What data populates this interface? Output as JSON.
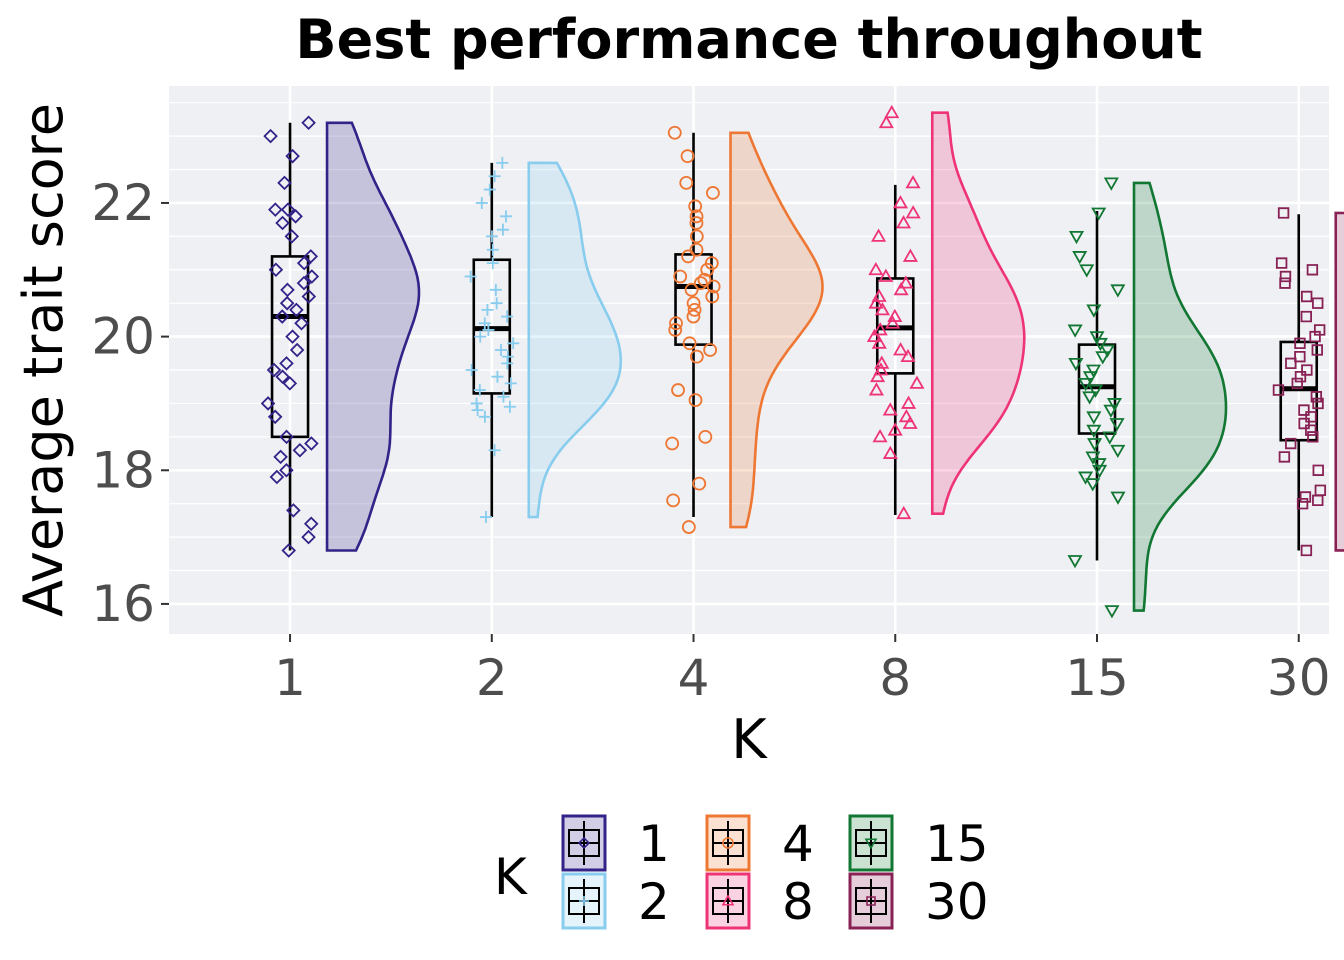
{
  "chart_data": {
    "type": "raincloud",
    "title": "Best performance throughout",
    "xlabel": "K",
    "ylabel": "Average trait score",
    "categories": [
      "1",
      "2",
      "4",
      "8",
      "15",
      "30"
    ],
    "ylim": [
      15.55,
      23.75
    ],
    "yticks": [
      16,
      18,
      20,
      22
    ],
    "grid": true,
    "legend": {
      "title": "K",
      "position": "bottom",
      "labels": [
        "1",
        "2",
        "4",
        "8",
        "15",
        "30"
      ]
    },
    "colors": [
      "#332288",
      "#88ccee",
      "#ee7733",
      "#ee3377",
      "#117733",
      "#882255"
    ],
    "shapes": [
      "diamond",
      "plus",
      "circle",
      "triangle-up",
      "triangle-down",
      "square"
    ],
    "boxes": [
      {
        "category": "1",
        "min": 16.8,
        "q1": 18.5,
        "median": 20.3,
        "q3": 21.2,
        "max": 23.2
      },
      {
        "category": "2",
        "min": 17.3,
        "q1": 19.15,
        "median": 20.12,
        "q3": 21.15,
        "max": 22.6
      },
      {
        "category": "4",
        "min": 17.3,
        "q1": 19.88,
        "median": 20.75,
        "q3": 21.23,
        "max": 23.05
      },
      {
        "category": "8",
        "min": 17.33,
        "q1": 19.45,
        "median": 20.13,
        "q3": 20.87,
        "max": 22.27
      },
      {
        "category": "15",
        "min": 16.65,
        "q1": 18.55,
        "median": 19.25,
        "q3": 19.88,
        "max": 21.88
      },
      {
        "category": "30",
        "min": 16.8,
        "q1": 18.45,
        "median": 19.22,
        "q3": 19.92,
        "max": 21.83
      }
    ],
    "points": [
      [
        23.2,
        23.0,
        22.7,
        22.3,
        21.9,
        21.8,
        21.9,
        21.7,
        21.5,
        21.2,
        21.1,
        21.0,
        20.9,
        20.8,
        20.7,
        20.6,
        20.5,
        20.4,
        20.3,
        20.2,
        20.0,
        19.8,
        19.6,
        19.5,
        19.4,
        19.3,
        19.0,
        18.8,
        18.5,
        18.4,
        18.3,
        18.2,
        18.0,
        17.9,
        17.4,
        17.2,
        17.0,
        16.8
      ],
      [
        22.6,
        22.4,
        22.2,
        22.0,
        21.8,
        21.6,
        21.5,
        21.3,
        21.1,
        20.9,
        20.7,
        20.5,
        20.4,
        20.3,
        20.2,
        20.1,
        20.0,
        19.9,
        19.8,
        19.7,
        19.6,
        19.5,
        19.4,
        19.3,
        19.2,
        19.1,
        19.0,
        18.95,
        18.9,
        18.8,
        18.3,
        17.3
      ],
      [
        23.05,
        22.7,
        22.3,
        22.15,
        21.95,
        21.8,
        21.7,
        21.5,
        21.3,
        21.2,
        21.1,
        21.0,
        20.9,
        20.85,
        20.8,
        20.75,
        20.7,
        20.6,
        20.5,
        20.4,
        20.3,
        20.2,
        20.1,
        19.9,
        19.8,
        19.7,
        19.2,
        19.05,
        18.5,
        18.4,
        17.8,
        17.55,
        17.15
      ],
      [
        23.35,
        23.2,
        22.3,
        22.0,
        21.85,
        21.7,
        21.5,
        21.2,
        21.0,
        20.9,
        20.8,
        20.7,
        20.6,
        20.5,
        20.4,
        20.3,
        20.2,
        20.1,
        20.0,
        19.9,
        19.8,
        19.7,
        19.6,
        19.5,
        19.4,
        19.3,
        19.2,
        19.0,
        18.9,
        18.8,
        18.7,
        18.6,
        18.5,
        18.25,
        17.35
      ],
      [
        22.3,
        21.85,
        21.5,
        21.2,
        21.0,
        20.7,
        20.4,
        20.1,
        20.0,
        19.9,
        19.8,
        19.7,
        19.6,
        19.5,
        19.4,
        19.3,
        19.2,
        19.1,
        19.0,
        18.9,
        18.8,
        18.7,
        18.6,
        18.5,
        18.4,
        18.3,
        18.2,
        18.1,
        18.0,
        17.9,
        17.8,
        17.6,
        16.65,
        15.9
      ],
      [
        21.85,
        21.1,
        21.0,
        20.9,
        20.8,
        20.6,
        20.5,
        20.3,
        20.1,
        20.0,
        19.9,
        19.8,
        19.7,
        19.6,
        19.5,
        19.4,
        19.3,
        19.2,
        19.1,
        19.0,
        18.9,
        18.8,
        18.7,
        18.6,
        18.5,
        18.4,
        18.2,
        18.0,
        17.7,
        17.6,
        17.55,
        17.5,
        16.8
      ]
    ]
  }
}
